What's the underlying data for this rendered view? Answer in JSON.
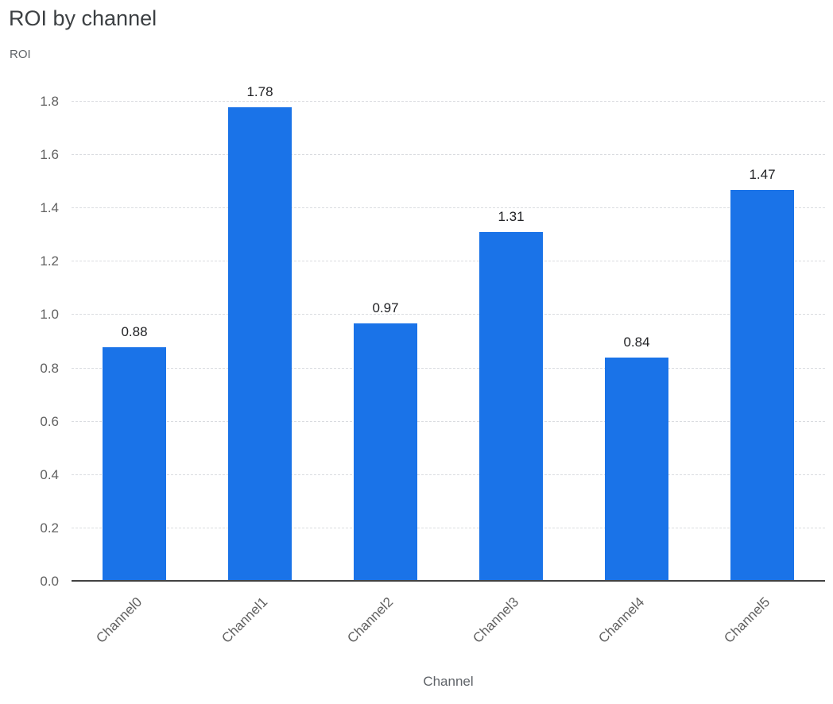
{
  "title": "ROI by channel",
  "chart_data": {
    "type": "bar",
    "title": "ROI by channel",
    "xlabel": "Channel",
    "ylabel": "ROI",
    "categories": [
      "Channel0",
      "Channel1",
      "Channel2",
      "Channel3",
      "Channel4",
      "Channel5"
    ],
    "values": [
      0.88,
      1.78,
      0.97,
      1.31,
      0.84,
      1.47
    ],
    "data_labels": [
      "0.88",
      "1.78",
      "0.97",
      "1.31",
      "0.84",
      "1.47"
    ],
    "ylim": [
      0,
      1.8
    ],
    "yticks": [
      "0.0",
      "0.2",
      "0.4",
      "0.6",
      "0.8",
      "1.0",
      "1.2",
      "1.4",
      "1.6",
      "1.8"
    ],
    "grid": "horizontal-dashed",
    "legend": "none",
    "bar_color": "#1a73e8",
    "value_label_color": "#202124",
    "axis_line_color": "#424242",
    "gridline_color": "#dadce0",
    "tick_label_color": "#616161"
  }
}
